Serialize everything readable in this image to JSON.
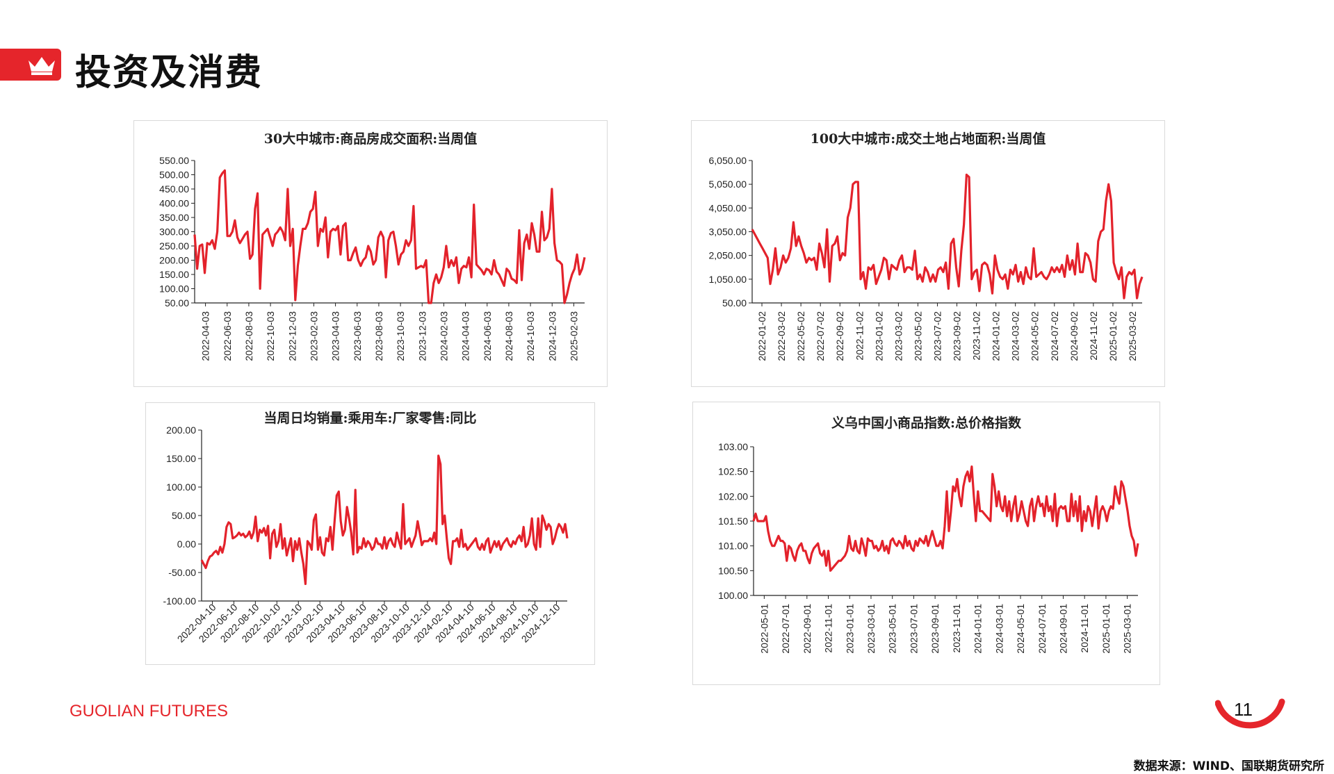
{
  "header": {
    "title": "投资及消费",
    "icon": "crown-icon"
  },
  "colors": {
    "accent": "#e5252b",
    "series": "#e3222b",
    "axis": "#222222"
  },
  "footer": {
    "brand_a": "GUOLIAN",
    "brand_b": " FUTURES",
    "page": "11",
    "source": "数据来源：WIND、国联期货研究所"
  },
  "chart_data": [
    {
      "type": "line",
      "title": "30大中城市:商品房成交面积:当周值",
      "ylim": [
        50,
        550
      ],
      "yticks": [
        50,
        100,
        150,
        200,
        250,
        300,
        350,
        400,
        450,
        500,
        550
      ],
      "ytick_labels": [
        "50.00",
        "100.00",
        "150.00",
        "200.00",
        "250.00",
        "300.00",
        "350.00",
        "400.00",
        "450.00",
        "500.00",
        "550.00"
      ],
      "xtick_labels": [
        "2022-04-03",
        "2022-06-03",
        "2022-08-03",
        "2022-10-03",
        "2022-12-03",
        "2023-02-03",
        "2023-04-03",
        "2023-06-03",
        "2023-08-03",
        "2023-10-03",
        "2023-12-03",
        "2024-02-03",
        "2024-04-03",
        "2024-06-03",
        "2024-08-03",
        "2024-10-03",
        "2024-12-03",
        "2025-02-03"
      ],
      "series": [
        {
          "name": "当周值",
          "values": [
            290,
            170,
            250,
            255,
            155,
            260,
            255,
            270,
            240,
            300,
            490,
            505,
            515,
            285,
            285,
            300,
            340,
            280,
            260,
            275,
            290,
            300,
            205,
            220,
            380,
            435,
            100,
            290,
            300,
            310,
            280,
            250,
            290,
            300,
            315,
            300,
            270,
            450,
            250,
            310,
            60,
            180,
            250,
            310,
            310,
            330,
            370,
            380,
            440,
            250,
            310,
            300,
            350,
            210,
            300,
            310,
            305,
            320,
            220,
            320,
            330,
            200,
            200,
            225,
            245,
            200,
            180,
            200,
            210,
            250,
            230,
            185,
            200,
            280,
            300,
            280,
            140,
            270,
            295,
            300,
            250,
            185,
            220,
            230,
            270,
            250,
            270,
            390,
            170,
            175,
            180,
            175,
            200,
            50,
            50,
            120,
            150,
            120,
            140,
            175,
            250,
            175,
            200,
            180,
            210,
            120,
            170,
            180,
            175,
            210,
            140,
            395,
            185,
            175,
            165,
            150,
            170,
            165,
            150,
            200,
            160,
            150,
            130,
            110,
            170,
            160,
            135,
            130,
            120,
            305,
            130,
            260,
            290,
            240,
            330,
            290,
            230,
            230,
            370,
            270,
            280,
            310,
            450,
            260,
            200,
            195,
            185,
            50,
            80,
            120,
            150,
            170,
            220,
            150,
            170,
            210
          ]
        }
      ]
    },
    {
      "type": "line",
      "title": "100大中城市:成交土地占地面积:当周值",
      "ylim": [
        50,
        6050
      ],
      "yticks": [
        50,
        1050,
        2050,
        3050,
        4050,
        5050,
        6050
      ],
      "ytick_labels": [
        "50.00",
        "1,050.00",
        "2,050.00",
        "3,050.00",
        "4,050.00",
        "5,050.00",
        "6,050.00"
      ],
      "xtick_labels": [
        "2022-01-02",
        "2022-03-02",
        "2022-05-02",
        "2022-07-02",
        "2022-09-02",
        "2022-11-02",
        "2023-01-02",
        "2023-03-02",
        "2023-05-02",
        "2023-07-02",
        "2023-09-02",
        "2023-11-02",
        "2024-01-02",
        "2024-03-02",
        "2024-05-02",
        "2024-07-02",
        "2024-09-02",
        "2024-11-02",
        "2025-01-02",
        "2025-03-02"
      ],
      "series": [
        {
          "name": "当周值",
          "values": [
            3150,
            2950,
            2750,
            2550,
            2350,
            2150,
            1950,
            850,
            1450,
            2350,
            1250,
            1550,
            2050,
            1750,
            1950,
            2350,
            3450,
            2450,
            2850,
            2450,
            2150,
            1750,
            1950,
            1850,
            1950,
            1450,
            2550,
            2150,
            1550,
            3150,
            950,
            2450,
            2550,
            2850,
            1850,
            2150,
            2050,
            3650,
            4050,
            5050,
            5150,
            5150,
            1050,
            1350,
            650,
            1550,
            1450,
            1650,
            850,
            1150,
            1450,
            1950,
            1850,
            1050,
            1650,
            1550,
            1450,
            1850,
            2050,
            1350,
            1550,
            1550,
            1450,
            2250,
            1050,
            1250,
            950,
            1550,
            1350,
            950,
            1250,
            950,
            1450,
            1550,
            1350,
            1750,
            650,
            2550,
            2750,
            1550,
            750,
            2250,
            3350,
            5450,
            5350,
            1050,
            1350,
            1450,
            550,
            1650,
            1750,
            1650,
            1250,
            450,
            2050,
            1450,
            1150,
            1050,
            1250,
            650,
            1450,
            1250,
            1650,
            950,
            1350,
            850,
            1550,
            1150,
            1050,
            2350,
            1150,
            1250,
            1350,
            1150,
            1050,
            1250,
            1550,
            1350,
            1550,
            1350,
            1650,
            1150,
            2050,
            1450,
            1850,
            1250,
            2550,
            1350,
            1350,
            2150,
            2050,
            1750,
            1050,
            950,
            2650,
            3050,
            3150,
            4350,
            5050,
            4350,
            1750,
            1350,
            1050,
            1550,
            250,
            1150,
            1350,
            1250,
            1450,
            250,
            850,
            1150
          ]
        }
      ]
    },
    {
      "type": "line",
      "title": "当周日均销量:乘用车:厂家零售:同比",
      "ylim": [
        -100,
        200
      ],
      "yticks": [
        -100,
        -50,
        0,
        50,
        100,
        150,
        200
      ],
      "ytick_labels": [
        "-100.00",
        "-50.00",
        "0.00",
        "50.00",
        "100.00",
        "150.00",
        "200.00"
      ],
      "xtick_labels": [
        "2022-04-10",
        "2022-06-10",
        "2022-08-10",
        "2022-10-10",
        "2022-12-10",
        "2023-02-10",
        "2023-04-10",
        "2023-06-10",
        "2023-08-10",
        "2023-10-10",
        "2023-12-10",
        "2024-02-10",
        "2024-04-10",
        "2024-06-10",
        "2024-08-10",
        "2024-10-10",
        "2024-12-10"
      ],
      "series": [
        {
          "name": "同比",
          "values": [
            -28,
            -35,
            -42,
            -30,
            -22,
            -20,
            -15,
            -12,
            -18,
            -5,
            -15,
            0,
            30,
            38,
            35,
            10,
            12,
            15,
            20,
            15,
            18,
            12,
            15,
            22,
            10,
            20,
            48,
            5,
            25,
            20,
            28,
            15,
            32,
            -25,
            18,
            25,
            -5,
            5,
            35,
            -8,
            10,
            -20,
            -5,
            10,
            -30,
            5,
            -10,
            10,
            -15,
            -35,
            -70,
            5,
            0,
            -10,
            42,
            52,
            -10,
            12,
            -15,
            -20,
            10,
            5,
            30,
            -10,
            40,
            85,
            92,
            40,
            15,
            25,
            65,
            45,
            20,
            -18,
            95,
            -15,
            -5,
            -8,
            10,
            -5,
            5,
            0,
            -10,
            -5,
            10,
            0,
            0,
            -8,
            12,
            -8,
            5,
            10,
            0,
            -5,
            20,
            5,
            -8,
            70,
            0,
            5,
            10,
            -5,
            5,
            15,
            40,
            20,
            -2,
            5,
            5,
            5,
            10,
            5,
            20,
            0,
            155,
            140,
            35,
            50,
            10,
            -25,
            -35,
            5,
            5,
            10,
            -5,
            25,
            -5,
            0,
            -10,
            -5,
            0,
            5,
            10,
            -5,
            -10,
            0,
            -10,
            5,
            10,
            -15,
            -5,
            5,
            -5,
            5,
            -10,
            0,
            5,
            10,
            0,
            -5,
            5,
            0,
            10,
            15,
            5,
            30,
            -5,
            0,
            15,
            45,
            0,
            -10,
            45,
            -5,
            50,
            40,
            25,
            35,
            30,
            0,
            10,
            25,
            35,
            30,
            20,
            35,
            10
          ]
        }
      ]
    },
    {
      "type": "line",
      "title": "义乌中国小商品指数:总价格指数",
      "ylim": [
        100,
        103
      ],
      "yticks": [
        100,
        100.5,
        101,
        101.5,
        102,
        102.5,
        103
      ],
      "ytick_labels": [
        "100.00",
        "100.50",
        "101.00",
        "101.50",
        "102.00",
        "102.50",
        "103.00"
      ],
      "xtick_labels": [
        "2022-05-01",
        "2022-07-01",
        "2022-09-01",
        "2022-11-01",
        "2023-01-01",
        "2023-03-01",
        "2023-05-01",
        "2023-07-01",
        "2023-09-01",
        "2023-11-01",
        "2024-01-01",
        "2024-03-01",
        "2024-05-01",
        "2024-07-01",
        "2024-09-01",
        "2024-11-01",
        "2025-01-01",
        "2025-03-01"
      ],
      "series": [
        {
          "name": "总价格指数",
          "values": [
            101.5,
            101.65,
            101.5,
            101.5,
            101.5,
            101.5,
            101.6,
            101.3,
            101.1,
            101.0,
            101.0,
            101.1,
            101.2,
            101.1,
            101.1,
            101.05,
            100.7,
            101.0,
            100.95,
            100.8,
            100.7,
            100.9,
            101.0,
            101.05,
            100.9,
            100.9,
            100.75,
            100.65,
            100.85,
            100.95,
            101.0,
            101.05,
            100.85,
            100.8,
            100.9,
            100.6,
            100.9,
            100.5,
            100.55,
            100.6,
            100.65,
            100.7,
            100.7,
            100.75,
            100.8,
            100.9,
            101.2,
            100.95,
            100.9,
            101.1,
            100.9,
            100.85,
            101.15,
            101.0,
            100.8,
            101.15,
            101.1,
            101.1,
            100.95,
            101.0,
            100.9,
            100.95,
            101.1,
            100.9,
            101.0,
            100.85,
            101.1,
            101.15,
            101.05,
            101.0,
            101.1,
            101.05,
            100.95,
            101.2,
            101.0,
            101.1,
            100.95,
            100.9,
            101.1,
            101.0,
            101.15,
            101.1,
            101.05,
            101.2,
            101.0,
            101.15,
            101.3,
            101.15,
            101.0,
            101.0,
            101.1,
            100.95,
            101.4,
            102.1,
            101.3,
            101.7,
            102.2,
            102.1,
            102.35,
            102.0,
            101.8,
            102.2,
            102.4,
            102.5,
            102.3,
            102.6,
            102.0,
            101.5,
            102.1,
            101.7,
            101.7,
            101.65,
            101.6,
            101.55,
            101.5,
            102.45,
            102.2,
            101.8,
            102.1,
            101.8,
            101.7,
            102.0,
            101.6,
            101.9,
            101.5,
            101.8,
            102.0,
            101.5,
            101.65,
            101.9,
            101.7,
            101.5,
            101.4,
            101.8,
            101.95,
            101.5,
            101.8,
            102.0,
            101.8,
            101.85,
            101.6,
            102.0,
            101.7,
            101.8,
            101.5,
            102.05,
            101.4,
            101.75,
            101.8,
            101.75,
            101.8,
            101.5,
            101.5,
            102.05,
            101.6,
            101.9,
            101.5,
            102.0,
            101.3,
            101.7,
            101.5,
            101.8,
            101.7,
            101.4,
            101.7,
            102.0,
            101.35,
            101.7,
            101.8,
            101.7,
            101.5,
            101.7,
            101.8,
            101.75,
            102.2,
            102.0,
            101.85,
            102.3,
            102.2,
            101.95,
            101.7,
            101.4,
            101.2,
            101.1,
            100.8,
            101.05
          ]
        }
      ]
    }
  ]
}
